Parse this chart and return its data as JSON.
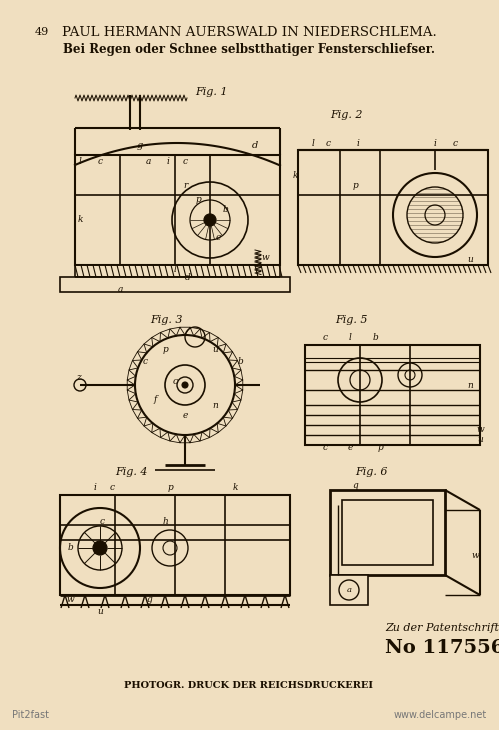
{
  "bg_color": "#f0dfc0",
  "title_line1": "PAUL HERMANN AUERSWALD IN NIEDERSCHLEMA.",
  "title_line2": "Bei Regen oder Schnee selbstthatiger Fensterschliefser.",
  "page_number": "49",
  "patent_number": "No 117556.",
  "patent_label": "Zu der Patentschrift",
  "bottom_text": "PHOTOGR. DRUCK DER REICHSDRUCKEREI",
  "watermark1": "Pit2fast",
  "watermark2": "www.delcampe.net",
  "fig1_label": "Fig. 1",
  "fig2_label": "Fig. 2",
  "fig3_label": "Fig. 3",
  "fig4_label": "Fig. 4",
  "fig5_label": "Fig. 5",
  "fig6_label": "Fig. 6",
  "line_color": "#1a0f00",
  "text_color": "#1a0f00"
}
